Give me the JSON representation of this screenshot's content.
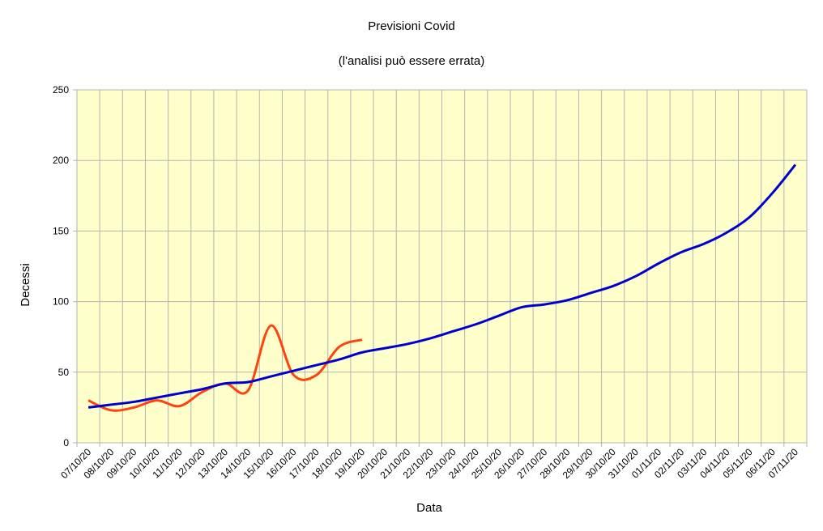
{
  "chart_data": {
    "type": "line",
    "title": "Previsioni Covid",
    "subtitle": "(l'analisi può essere errata)",
    "x_label": "Data",
    "y_label": "Decessi",
    "categories": [
      "07/10/20",
      "08/10/20",
      "09/10/20",
      "10/10/20",
      "11/10/20",
      "12/10/20",
      "13/10/20",
      "14/10/20",
      "15/10/20",
      "16/10/20",
      "17/10/20",
      "18/10/20",
      "19/10/20",
      "20/10/20",
      "21/10/20",
      "22/10/20",
      "23/10/20",
      "24/10/20",
      "25/10/20",
      "26/10/20",
      "27/10/20",
      "28/10/20",
      "29/10/20",
      "30/10/20",
      "31/10/20",
      "01/11/20",
      "02/11/20",
      "03/11/20",
      "04/11/20",
      "05/11/20",
      "06/11/20",
      "07/11/20"
    ],
    "series": [
      {
        "color": "#ff420e",
        "values": [
          30,
          23,
          25,
          30,
          26,
          36,
          42,
          37,
          83,
          48,
          48,
          68,
          73,
          null,
          null,
          null,
          null,
          null,
          null,
          null,
          null,
          null,
          null,
          null,
          null,
          null,
          null,
          null,
          null,
          null,
          null,
          null
        ]
      },
      {
        "color": "#0000cc",
        "values": [
          25,
          27,
          29,
          32,
          35,
          38,
          42,
          43,
          47,
          51,
          55,
          59,
          64,
          67,
          70,
          74,
          79,
          84,
          90,
          96,
          98,
          101,
          106,
          111,
          118,
          127,
          135,
          141,
          149,
          160,
          177,
          197
        ]
      }
    ],
    "ylim": [
      0,
      250
    ],
    "yticks": [
      0,
      50,
      100,
      150,
      200,
      250
    ],
    "grid": true,
    "background": "#ffffcc"
  }
}
